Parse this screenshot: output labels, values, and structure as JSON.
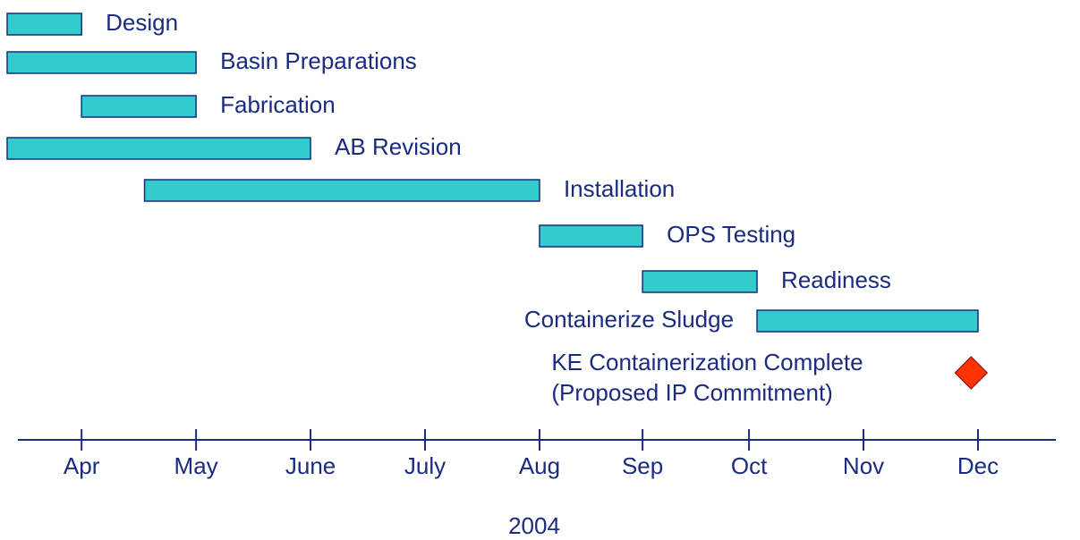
{
  "chart_data": {
    "type": "gantt",
    "x_label": "2004",
    "xlim": [
      3.35,
      12.51
    ],
    "xticks": [
      {
        "value": 4,
        "label": "Apr"
      },
      {
        "value": 5,
        "label": "May"
      },
      {
        "value": 6,
        "label": "June"
      },
      {
        "value": 7,
        "label": "July"
      },
      {
        "value": 8,
        "label": "Aug"
      },
      {
        "value": 8.9,
        "label": "Sep"
      },
      {
        "value": 9.83,
        "label": "Oct"
      },
      {
        "value": 10.83,
        "label": "Nov"
      },
      {
        "value": 11.83,
        "label": "Dec"
      }
    ],
    "color": "#33cccc",
    "milestone_color": "#ff3300",
    "tasks": [
      {
        "name": "Design",
        "start": 3.35,
        "end": 4.0,
        "label_side": "right"
      },
      {
        "name": "Basin Preparations",
        "start": 3.35,
        "end": 5.0,
        "label_side": "right"
      },
      {
        "name": "Fabrication",
        "start": 4.0,
        "end": 5.0,
        "label_side": "right"
      },
      {
        "name": "AB Revision",
        "start": 3.35,
        "end": 6.0,
        "label_side": "right"
      },
      {
        "name": "Installation",
        "start": 4.55,
        "end": 8.0,
        "label_side": "right"
      },
      {
        "name": "OPS Testing",
        "start": 8.0,
        "end": 8.9,
        "label_side": "right"
      },
      {
        "name": "Readiness",
        "start": 8.9,
        "end": 9.9,
        "label_side": "right"
      },
      {
        "name": "Containerize Sludge",
        "start": 9.9,
        "end": 11.83,
        "label_side": "left"
      }
    ],
    "milestone": {
      "label": [
        "KE Containerization Complete",
        "(Proposed IP Commitment)"
      ],
      "x": 11.77
    }
  }
}
